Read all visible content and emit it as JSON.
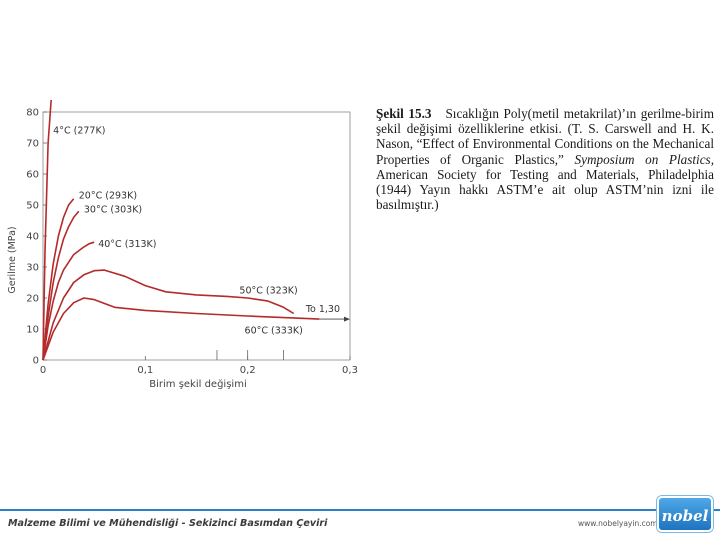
{
  "caption": {
    "label": "Şekil 15.3",
    "text1": "Sıcaklığın Poly(metil metakrilat)’ın gerilme-birim şekil değişimi özelliklerine etkisi. (T. S. Carswell and H. K. Nason, “Effect of Environmental Conditions on the Mechanical Properties of Organic Plastics,” ",
    "italic1": "Symposium on Plastics,",
    "text2": " American Society for Testing and Materials, Philadelphia (1944) Yayın hakkı ASTM’e ait olup ASTM’nin izni ile basılmıştır.)"
  },
  "footer": {
    "title": "Malzeme Bilimi ve Mühendisliği - Sekizinci Basımdan Çeviri",
    "url": "www.nobelyayin.com",
    "logo": "nobel"
  },
  "colors": {
    "curve": "#b52a2a",
    "axis": "#444444",
    "footer_bar": "#2a7fc9"
  },
  "chart_data": {
    "type": "line",
    "xlabel": "Birim şekil değişimi",
    "ylabel": "Gerilme (MPa)",
    "xlim": [
      0,
      0.3
    ],
    "ylim": [
      0,
      80
    ],
    "xticks": [
      {
        "value": 0,
        "label": "0"
      },
      {
        "value": 0.1,
        "label": "0,1"
      },
      {
        "value": 0.2,
        "label": "0,2"
      },
      {
        "value": 0.3,
        "label": "0,3"
      }
    ],
    "yticks": [
      0,
      10,
      20,
      30,
      40,
      50,
      60,
      70,
      80
    ],
    "series": [
      {
        "name": "4°C (277K)",
        "x": [
          0,
          0.002,
          0.005,
          0.008
        ],
        "y": [
          0,
          35,
          70,
          84
        ],
        "label_at": [
          0.008,
          74
        ]
      },
      {
        "name": "20°C (293K)",
        "x": [
          0,
          0.005,
          0.01,
          0.015,
          0.02,
          0.025,
          0.03
        ],
        "y": [
          0,
          18,
          31,
          40,
          46,
          50,
          52
        ],
        "label_at": [
          0.033,
          53
        ]
      },
      {
        "name": "30°C (303K)",
        "x": [
          0,
          0.005,
          0.01,
          0.015,
          0.02,
          0.025,
          0.03,
          0.035
        ],
        "y": [
          0,
          14,
          25,
          33,
          39,
          43,
          46,
          48
        ],
        "label_at": [
          0.038,
          48.5
        ]
      },
      {
        "name": "40°C (313K)",
        "x": [
          0,
          0.005,
          0.01,
          0.015,
          0.02,
          0.03,
          0.04,
          0.045,
          0.05
        ],
        "y": [
          0,
          11,
          19,
          25,
          29,
          34,
          36.5,
          37.5,
          38
        ],
        "label_at": [
          0.052,
          37.5
        ]
      },
      {
        "name": "50°C (323K)",
        "x": [
          0,
          0.01,
          0.02,
          0.03,
          0.04,
          0.05,
          0.06,
          0.08,
          0.1,
          0.12,
          0.15,
          0.18,
          0.2,
          0.22,
          0.235,
          0.245
        ],
        "y": [
          0,
          12,
          20,
          25,
          27.5,
          28.8,
          29,
          27,
          24,
          22,
          21,
          20.5,
          20,
          19,
          17,
          15
        ],
        "label_at": [
          0.19,
          22.5
        ]
      },
      {
        "name": "60°C (333K)",
        "x": [
          0,
          0.01,
          0.02,
          0.03,
          0.04,
          0.05,
          0.07,
          0.1,
          0.15,
          0.2,
          0.25,
          0.27
        ],
        "y": [
          0,
          9,
          15,
          18.5,
          20,
          19.5,
          17,
          16,
          15,
          14.2,
          13.5,
          13.2
        ],
        "label_at": [
          0.195,
          9.5
        ]
      }
    ],
    "annotation": {
      "text": "To 1,30",
      "x_start": 0.27,
      "x_end": 0.3,
      "y": 13.2
    },
    "extra_marks_x": [
      0.17,
      0.2,
      0.235
    ]
  }
}
